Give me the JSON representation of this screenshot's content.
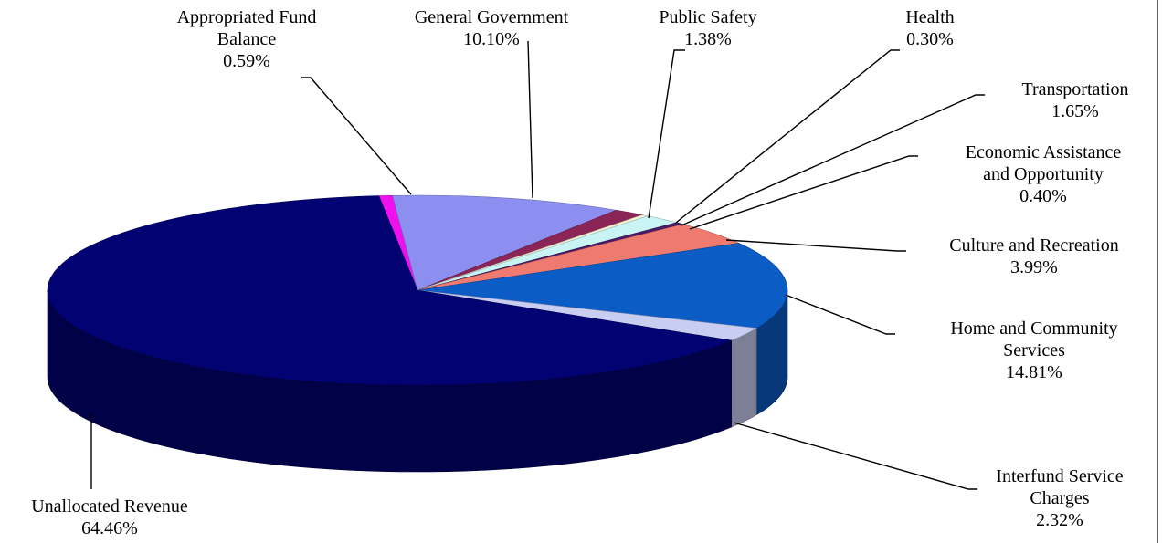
{
  "chart_data": {
    "type": "pie",
    "title": "",
    "slices": [
      {
        "label": "Appropriated Fund Balance",
        "value_text": "0.59%",
        "value": 0.59,
        "color": "#ee11ee"
      },
      {
        "label": "General Government",
        "value_text": "10.10%",
        "value": 10.1,
        "color": "#8c8ef0"
      },
      {
        "label": "Public Safety",
        "value_text": "1.38%",
        "value": 1.38,
        "color": "#8a2555"
      },
      {
        "label": "Health",
        "value_text": "0.30%",
        "value": 0.3,
        "color": "#f2f2d8"
      },
      {
        "label": "Transportation",
        "value_text": "1.65%",
        "value": 1.65,
        "color": "#c8f4f4"
      },
      {
        "label": "Economic Assistance and Opportunity",
        "value_text": "0.40%",
        "value": 0.4,
        "color": "#4a1a66"
      },
      {
        "label": "Culture and Recreation",
        "value_text": "3.99%",
        "value": 3.99,
        "color": "#ef7a70"
      },
      {
        "label": "Home and Community Services",
        "value_text": "14.81%",
        "value": 14.81,
        "color": "#0b5cc4"
      },
      {
        "label": "Interfund Service Charges",
        "value_text": "2.32%",
        "value": 2.32,
        "color": "#c8cdf2"
      },
      {
        "label": "Unallocated Revenue",
        "value_text": "64.46%",
        "value": 64.46,
        "color": "#020273"
      }
    ],
    "three_d": true,
    "legend": "none"
  }
}
